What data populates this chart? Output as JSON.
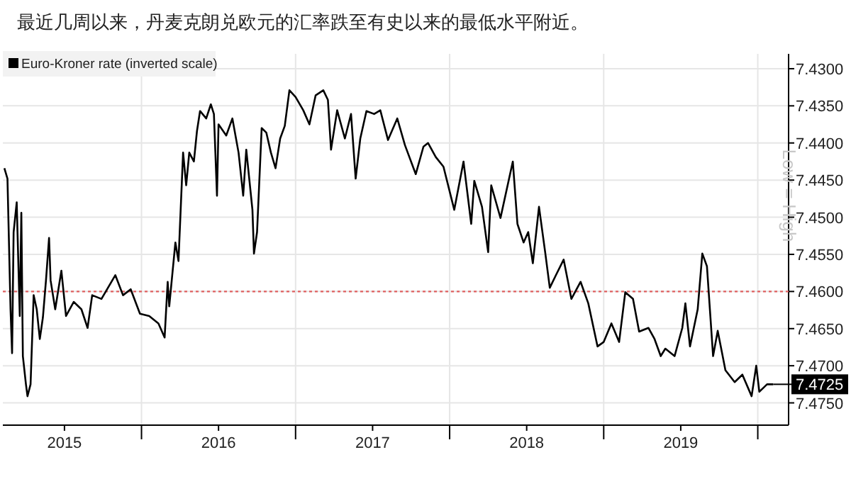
{
  "chart_data": {
    "type": "line",
    "title": "最近几周以来，丹麦克朗兑欧元的汇率跌至有史以来的最低水平附近。",
    "series": [
      {
        "name": "Euro-Kroner rate (inverted scale)",
        "color": "#000000",
        "x": [
          2015.11,
          2015.13,
          2015.15,
          2015.16,
          2015.17,
          2015.19,
          2015.21,
          2015.22,
          2015.23,
          2015.25,
          2015.26,
          2015.28,
          2015.3,
          2015.32,
          2015.34,
          2015.36,
          2015.38,
          2015.4,
          2015.41,
          2015.44,
          2015.48,
          2015.51,
          2015.56,
          2015.61,
          2015.65,
          2015.68,
          2015.74,
          2015.83,
          2015.88,
          2015.93,
          2015.99,
          2016.05,
          2016.11,
          2016.15,
          2016.17,
          2016.18,
          2016.22,
          2016.24,
          2016.27,
          2016.29,
          2016.31,
          2016.34,
          2016.36,
          2016.38,
          2016.42,
          2016.45,
          2016.47,
          2016.49,
          2016.5,
          2016.55,
          2016.59,
          2016.63,
          2016.66,
          2016.68,
          2016.72,
          2016.73,
          2016.75,
          2016.78,
          2016.81,
          2016.84,
          2016.87,
          2016.9,
          2016.93,
          2016.96,
          2017.0,
          2017.05,
          2017.09,
          2017.13,
          2017.18,
          2017.21,
          2017.23,
          2017.27,
          2017.32,
          2017.36,
          2017.39,
          2017.42,
          2017.46,
          2017.51,
          2017.55,
          2017.6,
          2017.66,
          2017.71,
          2017.78,
          2017.83,
          2017.86,
          2017.91,
          2017.96,
          2018.03,
          2018.09,
          2018.14,
          2018.16,
          2018.21,
          2018.25,
          2018.27,
          2018.33,
          2018.41,
          2018.44,
          2018.48,
          2018.51,
          2018.54,
          2018.58,
          2018.62,
          2018.65,
          2018.69,
          2018.74,
          2018.79,
          2018.85,
          2018.9,
          2018.96,
          2019.0,
          2019.05,
          2019.1,
          2019.14,
          2019.19,
          2019.23,
          2019.29,
          2019.33,
          2019.37,
          2019.4,
          2019.46,
          2019.51,
          2019.53,
          2019.56,
          2019.61,
          2019.64,
          2019.67,
          2019.71,
          2019.74,
          2019.79,
          2019.85,
          2019.9,
          2019.96,
          2019.99,
          2020.01,
          2020.06,
          2020.1
        ],
        "values": [
          7.4434,
          7.4448,
          7.4624,
          7.4683,
          7.452,
          7.448,
          7.4633,
          7.4494,
          7.4687,
          7.4725,
          7.4741,
          7.4725,
          7.4605,
          7.4624,
          7.4664,
          7.4635,
          7.4585,
          7.4528,
          7.4585,
          7.4624,
          7.4572,
          7.4633,
          7.4614,
          7.4624,
          7.4649,
          7.4605,
          7.461,
          7.4578,
          7.4605,
          7.4597,
          7.463,
          7.4633,
          7.4643,
          7.4662,
          7.4587,
          7.462,
          7.4534,
          7.4559,
          7.4413,
          7.4457,
          7.4413,
          7.4425,
          7.4384,
          7.4357,
          7.4367,
          7.4348,
          7.4361,
          7.4471,
          7.4375,
          7.439,
          7.4367,
          7.4413,
          7.4471,
          7.4409,
          7.449,
          7.4549,
          7.452,
          7.438,
          7.4386,
          7.4413,
          7.4434,
          7.4394,
          7.4377,
          7.4329,
          7.4338,
          7.4356,
          7.4375,
          7.4336,
          7.4329,
          7.4342,
          7.4409,
          7.4356,
          7.4394,
          7.4361,
          7.4448,
          7.4394,
          7.4357,
          7.4361,
          7.4356,
          7.4396,
          7.4367,
          7.4403,
          7.4442,
          7.4405,
          7.44,
          7.4419,
          7.4432,
          7.449,
          7.4425,
          7.4509,
          7.4451,
          7.4486,
          7.4547,
          7.4457,
          7.4501,
          7.4425,
          7.4509,
          7.4534,
          7.452,
          7.4562,
          7.4486,
          7.4547,
          7.4595,
          7.4578,
          7.4557,
          7.461,
          7.4587,
          7.4616,
          7.4674,
          7.4668,
          7.4643,
          7.4668,
          7.4601,
          7.461,
          7.4654,
          7.4649,
          7.4664,
          7.4687,
          7.4677,
          7.4687,
          7.4649,
          7.4616,
          7.4674,
          7.4624,
          7.4549,
          7.4566,
          7.4687,
          7.4653,
          7.4706,
          7.4722,
          7.4712,
          7.4741,
          7.47,
          7.4735,
          7.4725,
          7.4725
        ]
      }
    ],
    "xlim": [
      2015.1,
      2020.2
    ],
    "xticks": [
      {
        "value": 2015.5,
        "label": "2015"
      },
      {
        "value": 2016,
        "label": null
      },
      {
        "value": 2016.5,
        "label": "2016"
      },
      {
        "value": 2017,
        "label": null
      },
      {
        "value": 2017.5,
        "label": "2017"
      },
      {
        "value": 2018,
        "label": null
      },
      {
        "value": 2018.5,
        "label": "2018"
      },
      {
        "value": 2019,
        "label": null
      },
      {
        "value": 2019.5,
        "label": "2019"
      },
      {
        "value": 2020,
        "label": null
      }
    ],
    "ylim": [
      7.478,
      7.428
    ],
    "yticks": [
      {
        "value": 7.43,
        "label": "7.4300"
      },
      {
        "value": 7.435,
        "label": "7.4350"
      },
      {
        "value": 7.44,
        "label": "7.4400"
      },
      {
        "value": 7.445,
        "label": "7.4450"
      },
      {
        "value": 7.45,
        "label": "7.4500"
      },
      {
        "value": 7.455,
        "label": "7.4550"
      },
      {
        "value": 7.46,
        "label": "7.4600"
      },
      {
        "value": 7.465,
        "label": "7.4650"
      },
      {
        "value": 7.47,
        "label": "7.4700"
      },
      {
        "value": 7.475,
        "label": "7.4750"
      }
    ],
    "ref_lines": [
      {
        "axis": "y",
        "value": 7.46,
        "color": "#e06060",
        "line_style": "dotted"
      }
    ],
    "annotations": [
      {
        "text": "7.4725",
        "x": 2020.1,
        "y": 7.4725
      },
      "Low = High"
    ],
    "grid": true,
    "legend": "top left",
    "line_style": "solid",
    "marker": "none"
  }
}
